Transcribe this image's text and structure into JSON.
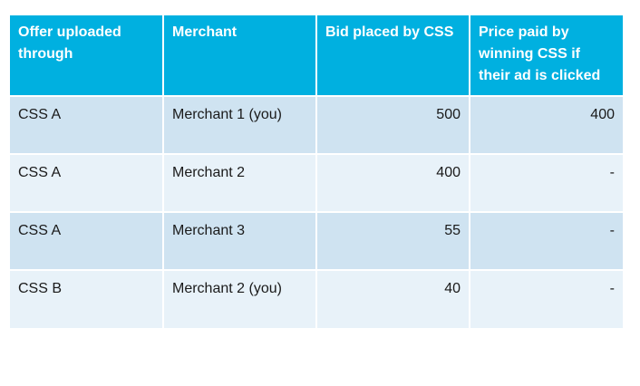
{
  "table": {
    "headers": [
      "Offer uploaded through",
      "Merchant",
      "Bid placed by CSS",
      "Price paid by winning CSS if their ad is clicked"
    ],
    "rows": [
      [
        "CSS A",
        "Merchant 1 (you)",
        "500",
        "400"
      ],
      [
        "CSS A",
        "Merchant 2",
        "400",
        "-"
      ],
      [
        "CSS A",
        "Merchant 3",
        "55",
        "-"
      ],
      [
        "CSS B",
        "Merchant 2 (you)",
        "40",
        "-"
      ]
    ]
  },
  "colors": {
    "header_bg": "#00b0e0",
    "header_text": "#ffffff",
    "row_odd_bg": "#cfe3f1",
    "row_even_bg": "#e8f2f9"
  }
}
